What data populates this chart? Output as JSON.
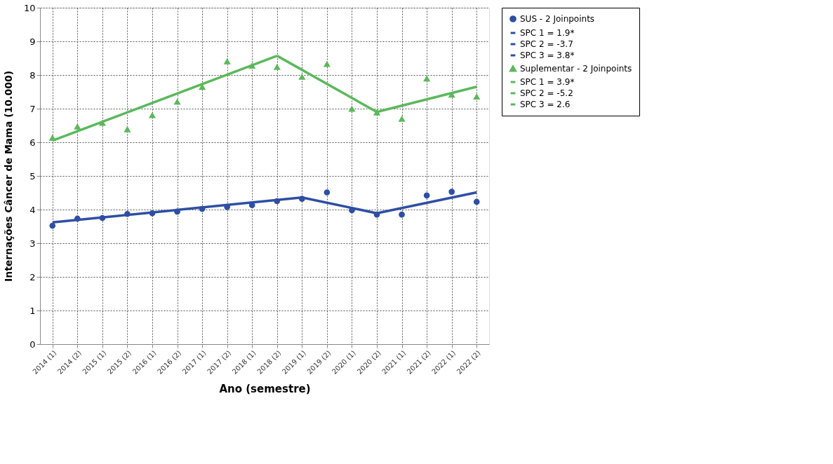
{
  "chart_data": {
    "type": "scatter",
    "xlabel": "Ano (semestre)",
    "ylabel": "Internações Câncer de Mama (10.000)",
    "categories": [
      "2014 (1)",
      "2014 (2)",
      "2015 (1)",
      "2015 (2)",
      "2016 (1)",
      "2016 (2)",
      "2017 (1)",
      "2017 (2)",
      "2018 (1)",
      "2018 (2)",
      "2019 (1)",
      "2019 (2)",
      "2020 (1)",
      "2020 (2)",
      "2021 (1)",
      "2021 (2)",
      "2022 (1)",
      "2022 (2)"
    ],
    "ylim": [
      0,
      10
    ],
    "yticks": [
      0,
      1,
      2,
      3,
      4,
      5,
      6,
      7,
      8,
      9,
      10
    ],
    "grid": true,
    "legend": "top right",
    "line_style": "solid",
    "series": [
      {
        "name": "SUS - 2 Joinpoints",
        "marker": "circle",
        "color": "#2e4fa3",
        "values": [
          3.52,
          3.73,
          3.75,
          3.87,
          3.89,
          3.94,
          4.02,
          4.08,
          4.13,
          4.25,
          4.32,
          4.51,
          3.98,
          3.85,
          3.85,
          4.42,
          4.53,
          4.23
        ]
      },
      {
        "name": "SPC 1 =  1.9*",
        "type": "line",
        "color": "#2e4fa3",
        "x": [
          "2014 (1)",
          "2019 (1)"
        ],
        "values": [
          3.62,
          4.36
        ]
      },
      {
        "name": "SPC 2 = -3.7",
        "type": "line",
        "color": "#2e4fa3",
        "x": [
          "2019 (1)",
          "2020 (2)"
        ],
        "values": [
          4.36,
          3.89
        ]
      },
      {
        "name": "SPC 3 =  3.8*",
        "type": "line",
        "color": "#2e4fa3",
        "x": [
          "2020 (2)",
          "2022 (2)"
        ],
        "values": [
          3.89,
          4.51
        ]
      },
      {
        "name": "Suplementar - 2 Joinpoints",
        "marker": "triangle",
        "color": "#5cb85c",
        "values": [
          6.13,
          6.46,
          6.57,
          6.38,
          6.8,
          7.2,
          7.64,
          8.4,
          8.27,
          8.23,
          7.94,
          8.32,
          6.99,
          6.88,
          6.69,
          7.89,
          7.41,
          7.35
        ]
      },
      {
        "name": "SPC 1 =  3.9*",
        "type": "line",
        "color": "#5cb85c",
        "x": [
          "2014 (1)",
          "2018 (2)"
        ],
        "values": [
          6.05,
          8.57
        ]
      },
      {
        "name": "SPC 2 = -5.2",
        "type": "line",
        "color": "#5cb85c",
        "x": [
          "2018 (2)",
          "2020 (2)"
        ],
        "values": [
          8.57,
          6.9
        ]
      },
      {
        "name": "SPC 3 =  2.6",
        "type": "line",
        "color": "#5cb85c",
        "x": [
          "2020 (2)",
          "2022 (2)"
        ],
        "values": [
          6.9,
          7.65
        ]
      }
    ]
  }
}
